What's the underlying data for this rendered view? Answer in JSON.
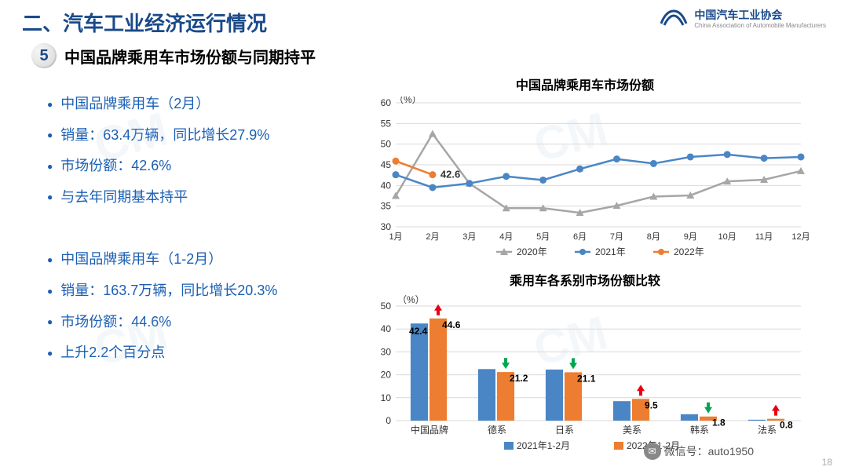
{
  "header": {
    "section_title": "二、汽车工业经济运行情况",
    "logo_main": "中国汽车工业协会",
    "logo_sub": "China Association of Automobile Manufacturers"
  },
  "subtitle": {
    "badge": "5",
    "text": "中国品牌乘用车市场份额与同期持平"
  },
  "bullets_top": [
    "中国品牌乘用车（2月）",
    "销量：63.4万辆，同比增长27.9%",
    "市场份额：42.6%",
    "与去年同期基本持平"
  ],
  "bullets_bottom": [
    "中国品牌乘用车（1-2月）",
    "销量：163.7万辆，同比增长20.3%",
    "市场份额：44.6%",
    "上升2.2个百分点"
  ],
  "line_chart": {
    "title": "中国品牌乘用车市场份额",
    "ylabel": "（%）",
    "ylim": [
      30,
      60
    ],
    "ytick_step": 5,
    "xlabels": [
      "1月",
      "2月",
      "3月",
      "4月",
      "5月",
      "6月",
      "7月",
      "8月",
      "9月",
      "10月",
      "11月",
      "12月"
    ],
    "series": [
      {
        "name": "2020年",
        "color": "#a6a6a6",
        "marker": "triangle",
        "values": [
          37.5,
          52.5,
          40.5,
          34.5,
          34.5,
          33.4,
          35.1,
          37.3,
          37.6,
          41.0,
          41.4,
          43.5
        ]
      },
      {
        "name": "2021年",
        "color": "#4a86c5",
        "marker": "circle",
        "values": [
          42.6,
          39.5,
          40.5,
          42.2,
          41.3,
          44.0,
          46.4,
          45.3,
          46.9,
          47.5,
          46.6,
          46.9
        ]
      },
      {
        "name": "2022年",
        "color": "#ed7d31",
        "marker": "circle",
        "values": [
          45.9,
          42.6
        ]
      }
    ],
    "annotation": {
      "x": 1,
      "y": 42.6,
      "text": "42.6"
    },
    "grid_color": "#d9d9d9",
    "background": "#ffffff"
  },
  "bar_chart": {
    "title": "乘用车各系别市场份额比较",
    "ylabel": "（%）",
    "ylim": [
      0,
      50
    ],
    "ytick_step": 10,
    "categories": [
      "中国品牌",
      "德系",
      "日系",
      "美系",
      "韩系",
      "法系"
    ],
    "series": [
      {
        "name": "2021年1-2月",
        "color": "#4a86c5",
        "values": [
          42.4,
          22.5,
          22.3,
          8.5,
          2.8,
          0.4
        ]
      },
      {
        "name": "2022年1-2月",
        "color": "#ed7d31",
        "values": [
          44.6,
          21.2,
          21.1,
          9.5,
          1.8,
          0.8
        ]
      }
    ],
    "value_labels": [
      "44.6",
      "21.2",
      "21.1",
      "9.5",
      "1.8",
      "0.8"
    ],
    "value_labels_left": [
      "42.4",
      "",
      "",
      "",
      "",
      ""
    ],
    "arrows": [
      "up",
      "down",
      "down",
      "up",
      "down",
      "up"
    ],
    "arrow_colors": {
      "up": "#e60012",
      "down": "#00a650"
    },
    "grid_color": "#d9d9d9"
  },
  "footer": {
    "wechat": "微信号：auto1950",
    "page": "18"
  }
}
